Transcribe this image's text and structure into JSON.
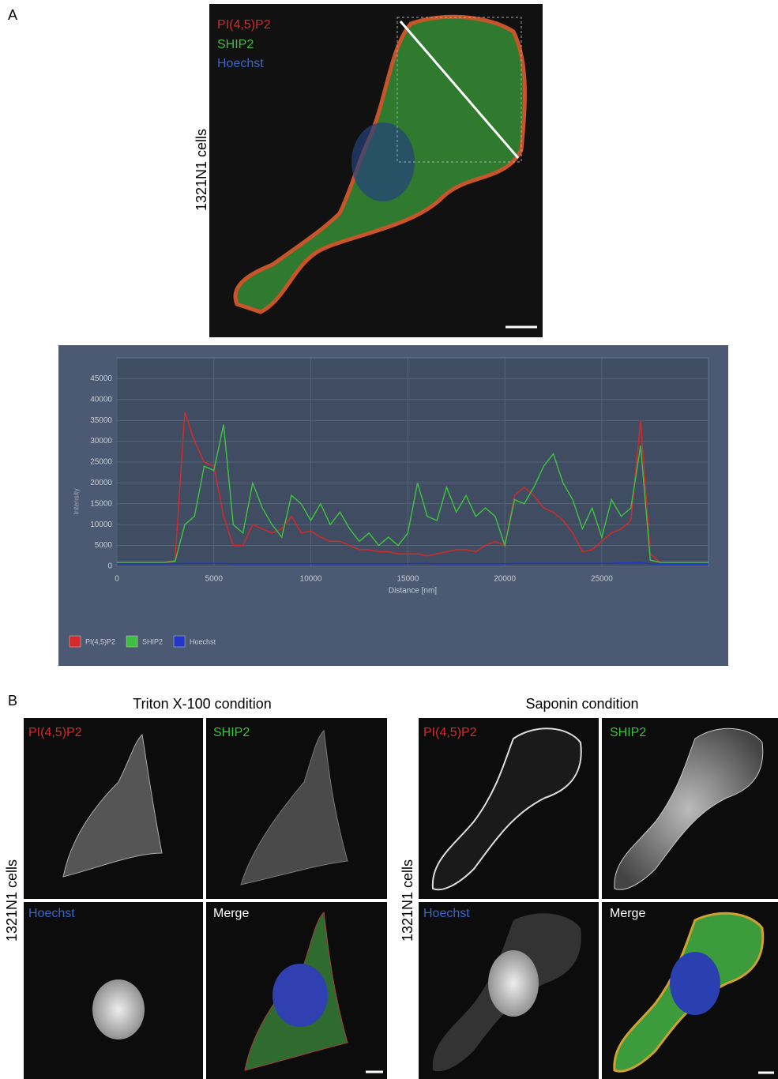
{
  "panel_a": {
    "label": "A",
    "row_label": "1321N1 cells",
    "channels": [
      "PI(4,5)P2",
      "SHIP2",
      "Hoechst"
    ]
  },
  "chart_data": {
    "type": "line",
    "xlabel": "Distance [nm]",
    "ylabel": "Intensity",
    "x": [
      0,
      500,
      1000,
      1500,
      2000,
      2500,
      3000,
      3500,
      4000,
      4500,
      5000,
      5500,
      6000,
      6500,
      7000,
      7500,
      8000,
      8500,
      9000,
      9500,
      10000,
      10500,
      11000,
      11500,
      12000,
      12500,
      13000,
      13500,
      14000,
      14500,
      15000,
      15500,
      16000,
      16500,
      17000,
      17500,
      18000,
      18500,
      19000,
      19500,
      20000,
      20500,
      21000,
      21500,
      22000,
      22500,
      23000,
      23500,
      24000,
      24500,
      25000,
      25500,
      26000,
      26500,
      27000,
      27500,
      28000,
      28500,
      29000,
      29500,
      30000,
      30500
    ],
    "series": [
      {
        "name": "PI(4,5)P2",
        "color": "#d42a2a",
        "values": [
          1000,
          1000,
          1000,
          1000,
          1000,
          1000,
          1500,
          37000,
          30000,
          25000,
          24000,
          12000,
          5000,
          5000,
          10000,
          9000,
          8000,
          9000,
          12000,
          8000,
          8500,
          7000,
          6000,
          6000,
          5000,
          4000,
          4000,
          3500,
          3500,
          3000,
          3000,
          3000,
          2500,
          3000,
          3500,
          4000,
          4000,
          3500,
          5000,
          6000,
          5000,
          17000,
          19000,
          17000,
          14000,
          13000,
          11000,
          8000,
          3500,
          4000,
          6000,
          8000,
          9000,
          11000,
          35000,
          3000,
          1000,
          1000,
          1000,
          1000,
          1000,
          1000
        ]
      },
      {
        "name": "SHIP2",
        "color": "#3fbf3f",
        "values": [
          1000,
          1000,
          1000,
          1000,
          1000,
          1000,
          1200,
          10000,
          12000,
          24000,
          23000,
          34000,
          10000,
          8000,
          20000,
          14000,
          10000,
          7000,
          17000,
          15000,
          11000,
          15000,
          10000,
          13000,
          9000,
          6000,
          8000,
          5000,
          7000,
          5000,
          8000,
          20000,
          12000,
          11000,
          19000,
          13000,
          17000,
          12000,
          14000,
          12000,
          5000,
          16000,
          15000,
          19000,
          24000,
          27000,
          20000,
          16000,
          9000,
          14000,
          7000,
          16000,
          12000,
          14000,
          29000,
          1500,
          1000,
          1000,
          1000,
          1000,
          1000,
          1000
        ]
      },
      {
        "name": "Hoechst",
        "color": "#2236c8",
        "values": [
          600,
          600,
          600,
          600,
          600,
          600,
          600,
          700,
          700,
          700,
          700,
          700,
          600,
          600,
          600,
          600,
          600,
          600,
          600,
          600,
          600,
          600,
          600,
          600,
          600,
          600,
          600,
          600,
          600,
          600,
          600,
          700,
          700,
          600,
          600,
          600,
          600,
          600,
          600,
          600,
          600,
          700,
          700,
          700,
          700,
          700,
          700,
          700,
          700,
          700,
          700,
          700,
          800,
          800,
          900,
          600,
          500,
          500,
          500,
          500,
          500,
          500
        ]
      }
    ],
    "xlim": [
      0,
      30500
    ],
    "ylim": [
      0,
      50000
    ],
    "xticks": [
      0,
      5000,
      10000,
      15000,
      20000,
      25000
    ],
    "yticks": [
      0,
      5000,
      10000,
      15000,
      20000,
      25000,
      30000,
      35000,
      40000,
      45000
    ],
    "grid": true,
    "legend": "bottom-left"
  },
  "panel_b": {
    "label": "B",
    "row_label": "1321N1 cells",
    "conditions": [
      {
        "title": "Triton X-100 condition",
        "panels": [
          "PI(4,5)P2",
          "SHIP2",
          "Hoechst",
          "Merge"
        ]
      },
      {
        "title": "Saponin condition",
        "panels": [
          "PI(4,5)P2",
          "SHIP2",
          "Hoechst",
          "Merge"
        ]
      }
    ]
  }
}
